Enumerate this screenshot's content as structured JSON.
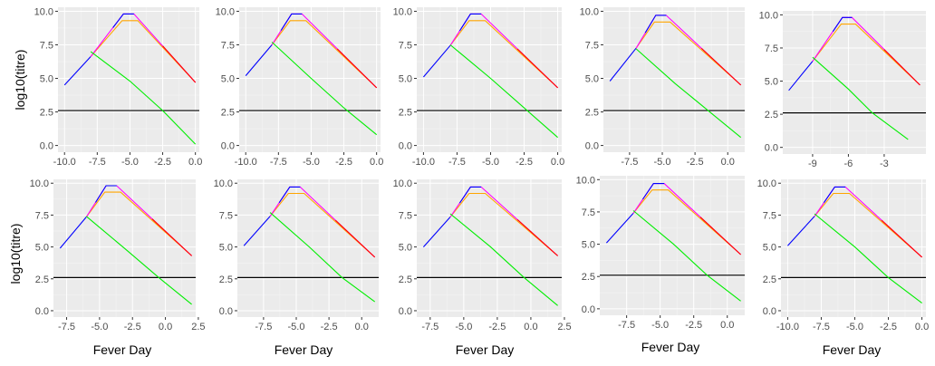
{
  "figure": {
    "ylabel_top": "log10(titre)",
    "ylabel_bottom": "log10(titre)",
    "xlabel": "Fever Day"
  },
  "colors": {
    "blue": "#0000ff",
    "magenta": "#ff00ff",
    "orange": "#ffa500",
    "red": "#ff0000",
    "green": "#00ee00",
    "threshold": "#000000"
  },
  "chart_data": [
    {
      "type": "line",
      "panel": "row1-col1",
      "xlim": [
        -10.5,
        0.3
      ],
      "ylim": [
        -0.5,
        10.3
      ],
      "xticks": [
        -10,
        -7.5,
        -5,
        -2.5,
        0
      ],
      "xtick_labels": [
        "-10.0",
        "-7.5",
        "-5.0",
        "-2.5",
        "0.0"
      ],
      "yticks": [
        0,
        2.5,
        5,
        7.5,
        10
      ],
      "ytick_labels": [
        "0.0",
        "2.5",
        "5.0",
        "7.5",
        "10.0"
      ],
      "threshold": 2.6,
      "peak": [
        -5,
        9.8
      ],
      "start": [
        -10,
        4.5
      ],
      "end": [
        0,
        4.7
      ],
      "green": [
        [
          -8,
          7.0
        ],
        [
          -5,
          4.8
        ],
        [
          -2.5,
          2.6
        ],
        [
          0,
          0.1
        ]
      ]
    },
    {
      "type": "line",
      "panel": "row1-col2",
      "xlim": [
        -10.5,
        0.3
      ],
      "ylim": [
        -0.5,
        10.3
      ],
      "xticks": [
        -10,
        -7.5,
        -5,
        -2.5,
        0
      ],
      "xtick_labels": [
        "-10.0",
        "-7.5",
        "-5.0",
        "-2.5",
        "0.0"
      ],
      "yticks": [
        0,
        2.5,
        5,
        7.5,
        10
      ],
      "ytick_labels": [
        "0.0",
        "2.5",
        "5.0",
        "7.5",
        "10.0"
      ],
      "threshold": 2.6,
      "peak": [
        -6,
        9.8
      ],
      "start": [
        -10,
        5.2
      ],
      "end": [
        0,
        4.3
      ],
      "green": [
        [
          -8,
          7.7
        ],
        [
          -5,
          5.0
        ],
        [
          -2.5,
          2.8
        ],
        [
          0,
          0.8
        ]
      ]
    },
    {
      "type": "line",
      "panel": "row1-col3",
      "xlim": [
        -10.5,
        0.3
      ],
      "ylim": [
        -0.5,
        10.3
      ],
      "xticks": [
        -10,
        -7.5,
        -5,
        -2.5,
        0
      ],
      "xtick_labels": [
        "-10.0",
        "-7.5",
        "-5.0",
        "-2.5",
        "0.0"
      ],
      "yticks": [
        0,
        2.5,
        5,
        7.5,
        10
      ],
      "ytick_labels": [
        "0.0",
        "2.5",
        "5.0",
        "7.5",
        "10.0"
      ],
      "threshold": 2.6,
      "peak": [
        -6,
        9.8
      ],
      "start": [
        -10,
        5.1
      ],
      "end": [
        0,
        4.3
      ],
      "green": [
        [
          -8,
          7.5
        ],
        [
          -5,
          5.0
        ],
        [
          -2.5,
          2.8
        ],
        [
          0,
          0.6
        ]
      ]
    },
    {
      "type": "line",
      "panel": "row1-col4",
      "xlim": [
        -9.5,
        1.3
      ],
      "ylim": [
        -0.5,
        10.3
      ],
      "xticks": [
        -7.5,
        -5,
        -2.5,
        0
      ],
      "xtick_labels": [
        "-7.5",
        "-5.0",
        "-2.5",
        "0.0"
      ],
      "yticks": [
        0,
        2.5,
        5,
        7.5,
        10
      ],
      "ytick_labels": [
        "0.0",
        "2.5",
        "5.0",
        "7.5",
        "10.0"
      ],
      "threshold": 2.6,
      "peak": [
        -5,
        9.7
      ],
      "start": [
        -9,
        4.8
      ],
      "end": [
        1,
        4.5
      ],
      "green": [
        [
          -7,
          7.2
        ],
        [
          -4,
          4.6
        ],
        [
          -1.5,
          2.6
        ],
        [
          1,
          0.6
        ]
      ]
    },
    {
      "type": "line",
      "panel": "row1-col5",
      "xlim": [
        -11.5,
        0.5
      ],
      "ylim": [
        -0.5,
        10.3
      ],
      "xticks": [
        -9,
        -6,
        -3
      ],
      "xtick_labels": [
        "-9",
        "-6",
        "-3"
      ],
      "yticks": [
        0,
        2.5,
        5,
        7.5,
        10
      ],
      "ytick_labels": [
        "0.0",
        "2.5",
        "5.0",
        "7.5",
        "10.0"
      ],
      "threshold": 2.6,
      "peak": [
        -6,
        9.8
      ],
      "start": [
        -11,
        4.3
      ],
      "end": [
        0,
        4.7
      ],
      "green": [
        [
          -9,
          6.8
        ],
        [
          -6,
          4.4
        ],
        [
          -4,
          2.6
        ],
        [
          -1,
          0.6
        ]
      ]
    },
    {
      "type": "line",
      "panel": "row2-col1",
      "xlim": [
        -8.5,
        2.3
      ],
      "ylim": [
        -0.5,
        10.3
      ],
      "xticks": [
        -7.5,
        -5,
        -2.5,
        0,
        2.5
      ],
      "xtick_labels": [
        "-7.5",
        "-5.0",
        "-2.5",
        "0.0",
        "2.5"
      ],
      "yticks": [
        0,
        2.5,
        5,
        7.5,
        10
      ],
      "ytick_labels": [
        "0.0",
        "2.5",
        "5.0",
        "7.5",
        "10.0"
      ],
      "threshold": 2.6,
      "peak": [
        -4,
        9.8
      ],
      "start": [
        -8,
        4.9
      ],
      "end": [
        2,
        4.3
      ],
      "green": [
        [
          -6,
          7.4
        ],
        [
          -3,
          4.8
        ],
        [
          -0.5,
          2.6
        ],
        [
          2,
          0.5
        ]
      ]
    },
    {
      "type": "line",
      "panel": "row2-col2",
      "xlim": [
        -9.5,
        1.3
      ],
      "ylim": [
        -0.5,
        10.3
      ],
      "xticks": [
        -7.5,
        -5,
        -2.5,
        0
      ],
      "xtick_labels": [
        "-7.5",
        "-5.0",
        "-2.5",
        "0.0"
      ],
      "yticks": [
        0,
        2.5,
        5,
        7.5,
        10
      ],
      "ytick_labels": [
        "0.0",
        "2.5",
        "5.0",
        "7.5",
        "10.0"
      ],
      "threshold": 2.6,
      "peak": [
        -5,
        9.7
      ],
      "start": [
        -9,
        5.1
      ],
      "end": [
        1,
        4.2
      ],
      "green": [
        [
          -7,
          7.7
        ],
        [
          -4,
          5.0
        ],
        [
          -1.5,
          2.6
        ],
        [
          1,
          0.7
        ]
      ]
    },
    {
      "type": "line",
      "panel": "row2-col3",
      "xlim": [
        -8.5,
        2.3
      ],
      "ylim": [
        -0.5,
        10.3
      ],
      "xticks": [
        -7.5,
        -5,
        -2.5,
        0,
        2.5
      ],
      "xtick_labels": [
        "-7.5",
        "-5.0",
        "-2.5",
        "0.0",
        "2.5"
      ],
      "yticks": [
        0,
        2.5,
        5,
        7.5,
        10
      ],
      "ytick_labels": [
        "0.0",
        "2.5",
        "5.0",
        "7.5",
        "10.0"
      ],
      "threshold": 2.6,
      "peak": [
        -4,
        9.7
      ],
      "start": [
        -8,
        5.0
      ],
      "end": [
        2,
        4.3
      ],
      "green": [
        [
          -6,
          7.6
        ],
        [
          -3,
          5.0
        ],
        [
          -0.5,
          2.6
        ],
        [
          2,
          0.4
        ]
      ]
    },
    {
      "type": "line",
      "panel": "row2-col4",
      "xlim": [
        -9.5,
        1.3
      ],
      "ylim": [
        -0.5,
        10.3
      ],
      "xticks": [
        -7.5,
        -5,
        -2.5,
        0
      ],
      "xtick_labels": [
        "-7.5",
        "-5.0",
        "-2.5",
        "0.0"
      ],
      "yticks": [
        0,
        2.5,
        5,
        7.5,
        10
      ],
      "ytick_labels": [
        "0.0",
        "2.5",
        "5.0",
        "7.5",
        "10.0"
      ],
      "threshold": 2.6,
      "peak": [
        -5,
        9.7
      ],
      "start": [
        -9,
        5.1
      ],
      "end": [
        1,
        4.2
      ],
      "green": [
        [
          -7,
          7.6
        ],
        [
          -4,
          5.0
        ],
        [
          -1.5,
          2.6
        ],
        [
          1,
          0.6
        ]
      ]
    },
    {
      "type": "line",
      "panel": "row2-col5",
      "xlim": [
        -10.5,
        0.3
      ],
      "ylim": [
        -0.5,
        10.3
      ],
      "xticks": [
        -10,
        -7.5,
        -5,
        -2.5,
        0
      ],
      "xtick_labels": [
        "-10.0",
        "-7.5",
        "-5.0",
        "-2.5",
        "0.0"
      ],
      "yticks": [
        0,
        2.5,
        5,
        7.5,
        10
      ],
      "ytick_labels": [
        "0.0",
        "2.5",
        "5.0",
        "7.5",
        "10.0"
      ],
      "threshold": 2.6,
      "peak": [
        -6,
        9.7
      ],
      "start": [
        -10,
        5.1
      ],
      "end": [
        0,
        4.2
      ],
      "green": [
        [
          -8,
          7.6
        ],
        [
          -5,
          5.0
        ],
        [
          -2.5,
          2.6
        ],
        [
          0,
          0.6
        ]
      ]
    }
  ]
}
